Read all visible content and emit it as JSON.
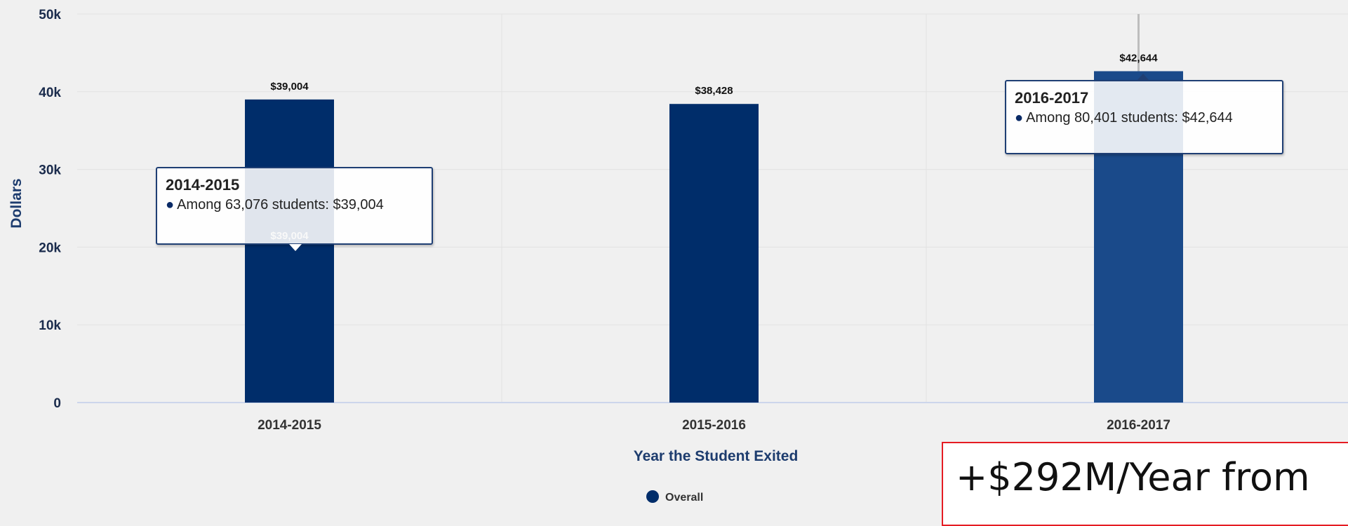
{
  "chart_data": {
    "type": "bar",
    "categories": [
      "2014-2015",
      "2015-2016",
      "2016-2017"
    ],
    "series": [
      {
        "name": "Overall",
        "values": [
          39004,
          38428,
          42644
        ],
        "color": "#002d6a"
      }
    ],
    "data_labels": [
      "$39,004",
      "$38,428",
      "$42,644"
    ],
    "ylabel": "Dollars",
    "xlabel": "Year the Student Exited",
    "ylim": [
      0,
      50000
    ],
    "yticks": [
      {
        "value": 0,
        "label": "0"
      },
      {
        "value": 10000,
        "label": "10k"
      },
      {
        "value": 20000,
        "label": "20k"
      },
      {
        "value": 30000,
        "label": "30k"
      },
      {
        "value": 40000,
        "label": "40k"
      },
      {
        "value": 50000,
        "label": "50k"
      }
    ],
    "grid": true,
    "legend": "bottom-center",
    "hover_color": "#1a4a8a"
  },
  "tooltips": [
    {
      "title": "2014-2015",
      "line": "Among 63,076 students: $39,004"
    },
    {
      "title": "2016-2017",
      "line": "Among 80,401 students: $42,644"
    }
  ],
  "tooltip_bullet": "●",
  "callout": {
    "text": "+$292M/Year from"
  }
}
